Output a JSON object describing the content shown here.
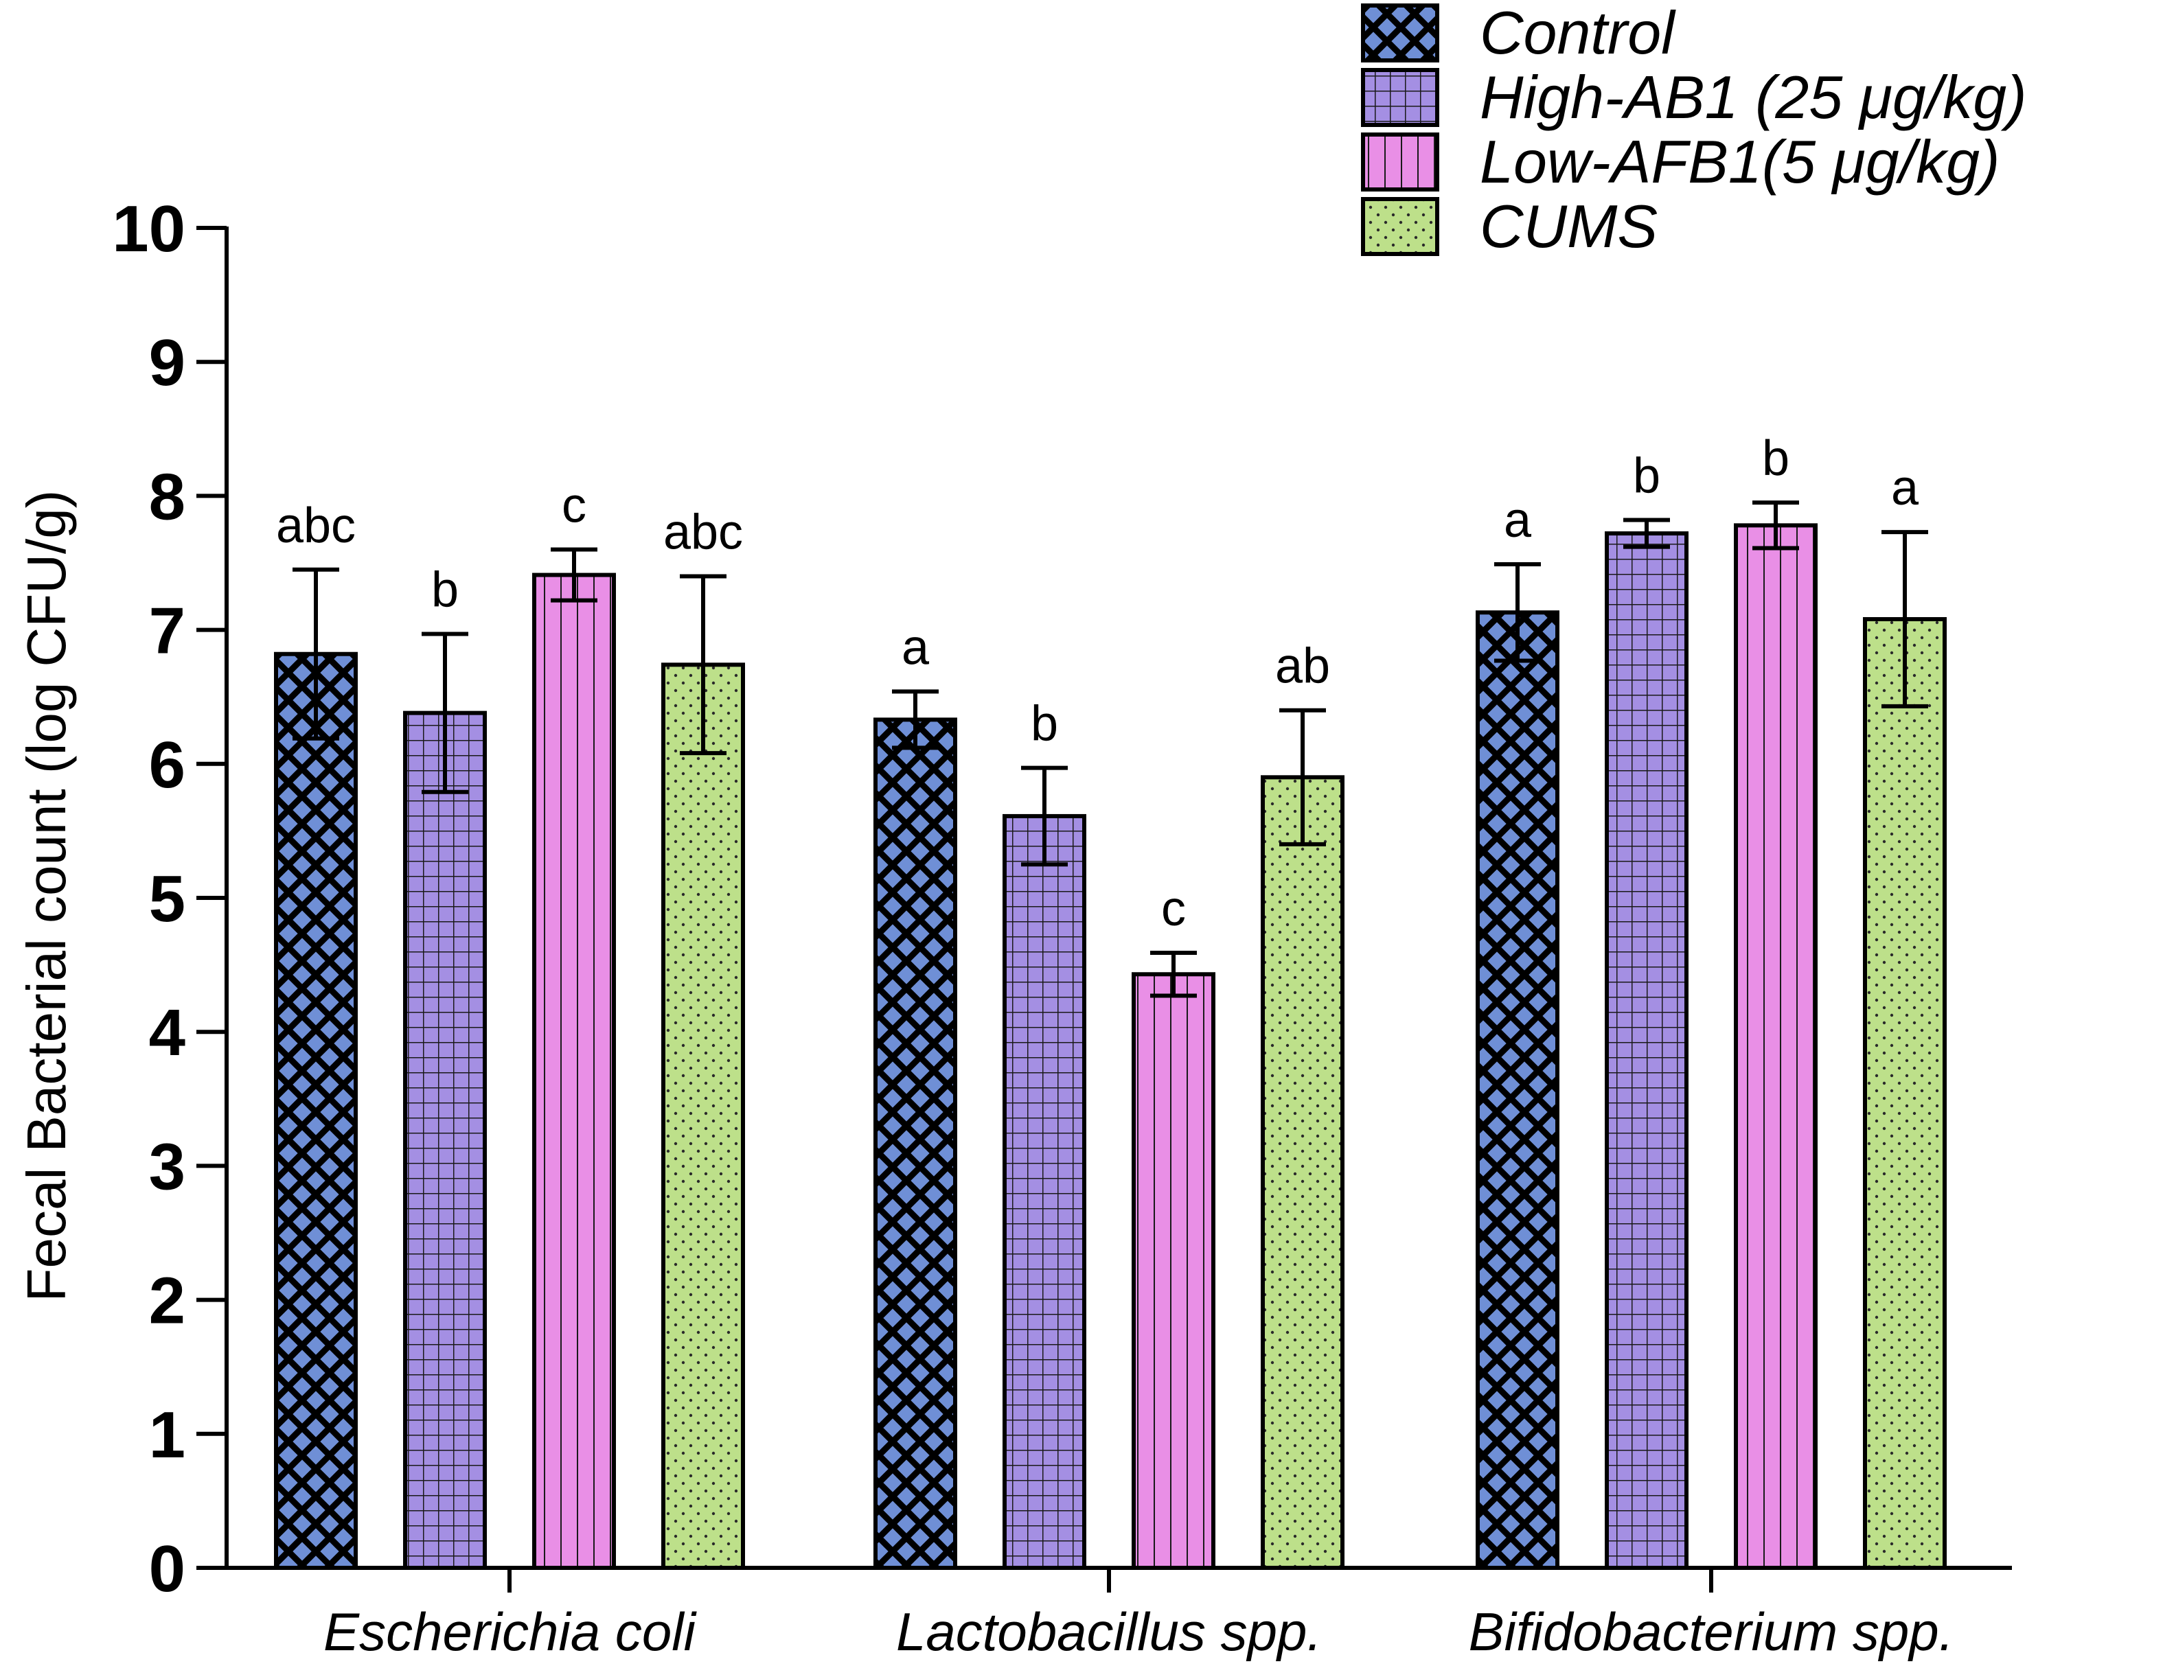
{
  "chart_data": {
    "type": "bar",
    "title": "",
    "xlabel": "",
    "ylabel": "Fecal Bacterial count (log CFU/g)",
    "ylim": [
      0,
      10
    ],
    "yticks": [
      "0",
      "1",
      "2",
      "3",
      "4",
      "5",
      "6",
      "7",
      "8",
      "9",
      "10"
    ],
    "grid": false,
    "legend_position": "top-right",
    "categories": [
      "Escherichia coli",
      "Lactobacillus spp.",
      "Bifidobacterium spp."
    ],
    "series": [
      {
        "name": "Control",
        "pattern": "crosshatch-diamond",
        "color": "#6f8fd6",
        "line_color": "#000000",
        "values": [
          6.82,
          6.33,
          7.13
        ],
        "errors": [
          0.63,
          0.21,
          0.36
        ],
        "significance": [
          "abc",
          "a",
          "a"
        ]
      },
      {
        "name": "High-AB1 (25 μg/kg)",
        "pattern": "grid",
        "color": "#a48fe3",
        "line_color": "#1a1a1a",
        "values": [
          6.38,
          5.61,
          7.72
        ],
        "errors": [
          0.59,
          0.36,
          0.1
        ],
        "significance": [
          "b",
          "b",
          "b"
        ]
      },
      {
        "name": "Low-AFB1(5 μg/kg)",
        "pattern": "vertical-lines",
        "color": "#e98fe6",
        "line_color": "#1a1a1a",
        "values": [
          7.41,
          4.43,
          7.78
        ],
        "errors": [
          0.19,
          0.16,
          0.17
        ],
        "significance": [
          "c",
          "c",
          "b"
        ]
      },
      {
        "name": "CUMS",
        "pattern": "dots",
        "color": "#bde08a",
        "line_color": "#2a2a2a",
        "values": [
          6.74,
          5.9,
          7.08
        ],
        "errors": [
          0.66,
          0.5,
          0.65
        ],
        "significance": [
          "abc",
          "ab",
          "a"
        ]
      }
    ]
  }
}
